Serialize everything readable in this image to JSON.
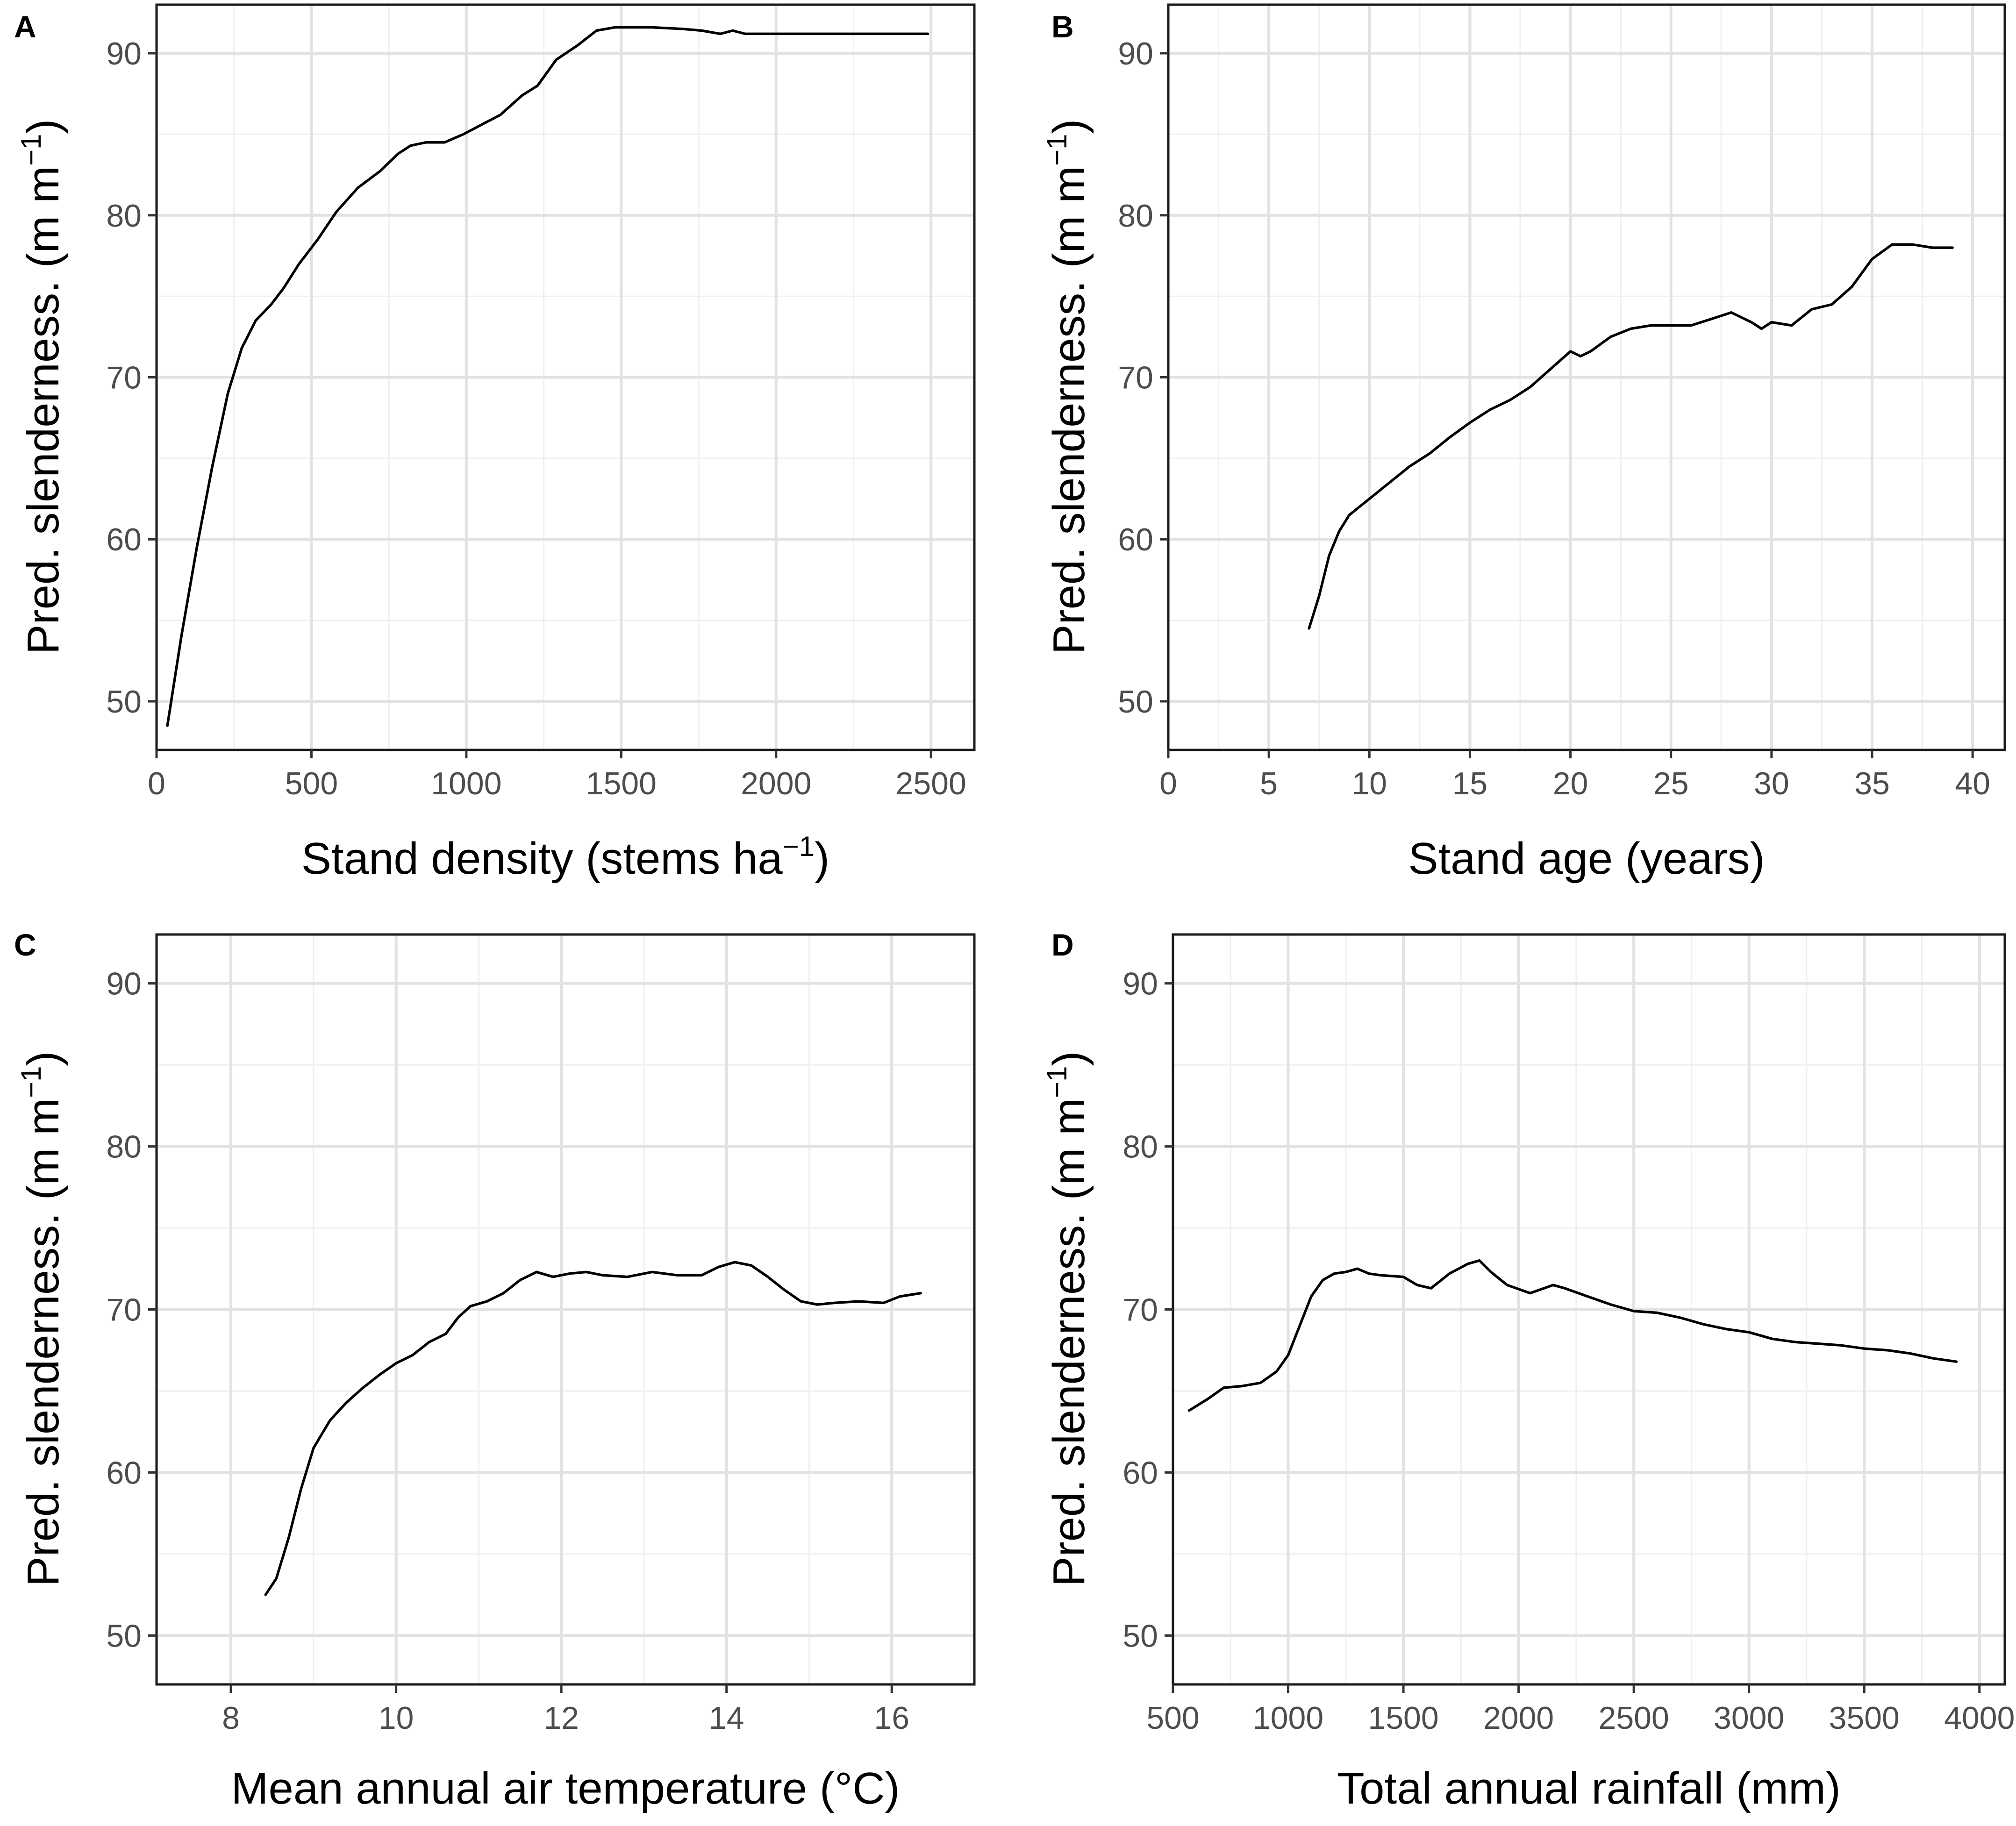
{
  "chart_data": [
    {
      "panel": "A",
      "type": "line",
      "xlabel": "Stand density (stems ha",
      "xlabel_sup": "−1",
      "xlabel_end": ")",
      "ylabel": "Pred. slenderness. (m m",
      "ylabel_sup": "−1",
      "ylabel_end": ")",
      "xlim": [
        0,
        2640
      ],
      "ylim": [
        47,
        93
      ],
      "xticks": [
        0,
        500,
        1000,
        1500,
        2000,
        2500
      ],
      "xtick_labels": [
        "0",
        "500",
        "1000",
        "1500",
        "2000",
        "2500"
      ],
      "yticks": [
        50,
        60,
        70,
        80,
        90
      ],
      "ytick_labels": [
        "50",
        "60",
        "70",
        "80",
        "90"
      ],
      "series": [
        {
          "name": "A",
          "x": [
            35,
            80,
            130,
            180,
            230,
            275,
            320,
            370,
            410,
            460,
            520,
            580,
            650,
            720,
            780,
            820,
            870,
            930,
            990,
            1050,
            1110,
            1180,
            1230,
            1290,
            1360,
            1420,
            1480,
            1520,
            1600,
            1700,
            1760,
            1820,
            1860,
            1900,
            1950,
            2050,
            2200,
            2350,
            2490
          ],
          "y": [
            48.5,
            54,
            59.5,
            64.5,
            69,
            71.8,
            73.5,
            74.5,
            75.5,
            77,
            78.5,
            80.2,
            81.7,
            82.7,
            83.8,
            84.3,
            84.5,
            84.5,
            85,
            85.6,
            86.2,
            87.4,
            88,
            89.6,
            90.5,
            91.4,
            91.6,
            91.6,
            91.6,
            91.5,
            91.4,
            91.2,
            91.4,
            91.2,
            91.2,
            91.2,
            91.2,
            91.2,
            91.2
          ]
        }
      ]
    },
    {
      "panel": "B",
      "type": "line",
      "xlabel": "Stand age (years)",
      "xlabel_sup": "",
      "xlabel_end": "",
      "ylabel": "Pred. slenderness. (m m",
      "ylabel_sup": "−1",
      "ylabel_end": ")",
      "xlim": [
        0,
        41.6
      ],
      "ylim": [
        47,
        93
      ],
      "xticks": [
        0,
        5,
        10,
        15,
        20,
        25,
        30,
        35,
        40
      ],
      "xtick_labels": [
        "0",
        "5",
        "10",
        "15",
        "20",
        "25",
        "30",
        "35",
        "40"
      ],
      "yticks": [
        50,
        60,
        70,
        80,
        90
      ],
      "ytick_labels": [
        "50",
        "60",
        "70",
        "80",
        "90"
      ],
      "series": [
        {
          "name": "B",
          "x": [
            7,
            7.5,
            8,
            8.5,
            9,
            10,
            11,
            12,
            13,
            14,
            15,
            16,
            17,
            18,
            19,
            20,
            20.5,
            21,
            22,
            23,
            24,
            25,
            26,
            27,
            28,
            29,
            29.5,
            30,
            31,
            32,
            33,
            34,
            35,
            36,
            37,
            38,
            39
          ],
          "y": [
            54.5,
            56.5,
            59,
            60.5,
            61.5,
            62.5,
            63.5,
            64.5,
            65.3,
            66.3,
            67.2,
            68,
            68.6,
            69.4,
            70.5,
            71.6,
            71.3,
            71.6,
            72.5,
            73,
            73.2,
            73.2,
            73.2,
            73.6,
            74,
            73.4,
            73,
            73.4,
            73.2,
            74.2,
            74.5,
            75.6,
            77.3,
            78.2,
            78.2,
            78,
            78
          ]
        }
      ]
    },
    {
      "panel": "C",
      "type": "line",
      "xlabel": "Mean annual air temperature (°C)",
      "xlabel_sup": "",
      "xlabel_end": "",
      "ylabel": "Pred. slenderness. (m m",
      "ylabel_sup": "−1",
      "ylabel_end": ")",
      "xlim": [
        7.1,
        17.0
      ],
      "ylim": [
        47,
        93
      ],
      "xticks": [
        8,
        10,
        12,
        14,
        16
      ],
      "xtick_labels": [
        "8",
        "10",
        "12",
        "14",
        "16"
      ],
      "yticks": [
        50,
        60,
        70,
        80,
        90
      ],
      "ytick_labels": [
        "50",
        "60",
        "70",
        "80",
        "90"
      ],
      "series": [
        {
          "name": "C",
          "x": [
            8.42,
            8.55,
            8.7,
            8.85,
            9.0,
            9.2,
            9.4,
            9.6,
            9.8,
            10.0,
            10.2,
            10.4,
            10.6,
            10.75,
            10.9,
            11.1,
            11.3,
            11.5,
            11.7,
            11.9,
            12.1,
            12.3,
            12.5,
            12.8,
            13.1,
            13.4,
            13.7,
            13.9,
            14.1,
            14.3,
            14.5,
            14.7,
            14.9,
            15.1,
            15.3,
            15.6,
            15.9,
            16.1,
            16.35
          ],
          "y": [
            52.5,
            53.5,
            56,
            59,
            61.5,
            63.2,
            64.3,
            65.2,
            66,
            66.7,
            67.2,
            68,
            68.5,
            69.5,
            70.2,
            70.5,
            71,
            71.8,
            72.3,
            72,
            72.2,
            72.3,
            72.1,
            72,
            72.3,
            72.1,
            72.1,
            72.6,
            72.9,
            72.7,
            72,
            71.2,
            70.5,
            70.3,
            70.4,
            70.5,
            70.4,
            70.8,
            71
          ]
        }
      ]
    },
    {
      "panel": "D",
      "type": "line",
      "xlabel": "Total annual rainfall (mm)",
      "xlabel_sup": "",
      "xlabel_end": "",
      "ylabel": "Pred. slenderness. (m m",
      "ylabel_sup": "−1",
      "ylabel_end": ")",
      "xlim": [
        500,
        4110
      ],
      "ylim": [
        47,
        93
      ],
      "xticks": [
        500,
        1000,
        1500,
        2000,
        2500,
        3000,
        3500,
        4000
      ],
      "xtick_labels": [
        "500",
        "1000",
        "1500",
        "2000",
        "2500",
        "3000",
        "3500",
        "4000"
      ],
      "yticks": [
        50,
        60,
        70,
        80,
        90
      ],
      "ytick_labels": [
        "50",
        "60",
        "70",
        "80",
        "90"
      ],
      "series": [
        {
          "name": "D",
          "x": [
            570,
            650,
            720,
            800,
            880,
            950,
            1000,
            1050,
            1100,
            1150,
            1200,
            1250,
            1300,
            1350,
            1400,
            1500,
            1560,
            1620,
            1700,
            1780,
            1830,
            1880,
            1950,
            2050,
            2150,
            2200,
            2300,
            2400,
            2500,
            2600,
            2700,
            2800,
            2900,
            3000,
            3100,
            3200,
            3300,
            3400,
            3500,
            3600,
            3700,
            3800,
            3900
          ],
          "y": [
            63.8,
            64.5,
            65.2,
            65.3,
            65.5,
            66.2,
            67.2,
            69,
            70.8,
            71.8,
            72.2,
            72.3,
            72.5,
            72.2,
            72.1,
            72,
            71.5,
            71.3,
            72.2,
            72.8,
            73,
            72.3,
            71.5,
            71,
            71.5,
            71.3,
            70.8,
            70.3,
            69.9,
            69.8,
            69.5,
            69.1,
            68.8,
            68.6,
            68.2,
            68,
            67.9,
            67.8,
            67.6,
            67.5,
            67.3,
            67,
            66.8
          ]
        }
      ]
    }
  ]
}
